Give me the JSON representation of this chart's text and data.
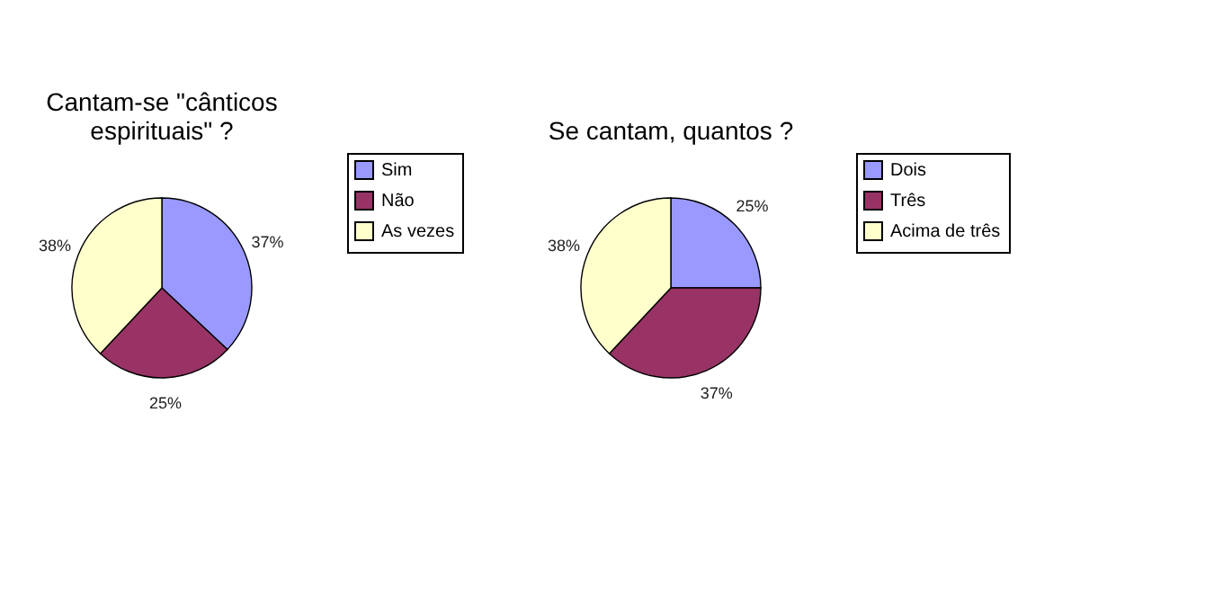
{
  "chart_data": [
    {
      "type": "pie",
      "title": "Cantam-se \"cânticos espirituais\" ?",
      "categories": [
        "Sim",
        "Não",
        "As vezes"
      ],
      "values": [
        37,
        25,
        38
      ],
      "colors": [
        "#9999ff",
        "#993366",
        "#ffffcc"
      ],
      "value_labels": [
        "37%",
        "25%",
        "38%"
      ],
      "legend": "right"
    },
    {
      "type": "pie",
      "title": "Se cantam, quantos ?",
      "categories": [
        "Dois",
        "Três",
        "Acima de três"
      ],
      "values": [
        25,
        37,
        38
      ],
      "colors": [
        "#9999ff",
        "#993366",
        "#ffffcc"
      ],
      "value_labels": [
        "25%",
        "37%",
        "38%"
      ],
      "legend": "right"
    }
  ]
}
